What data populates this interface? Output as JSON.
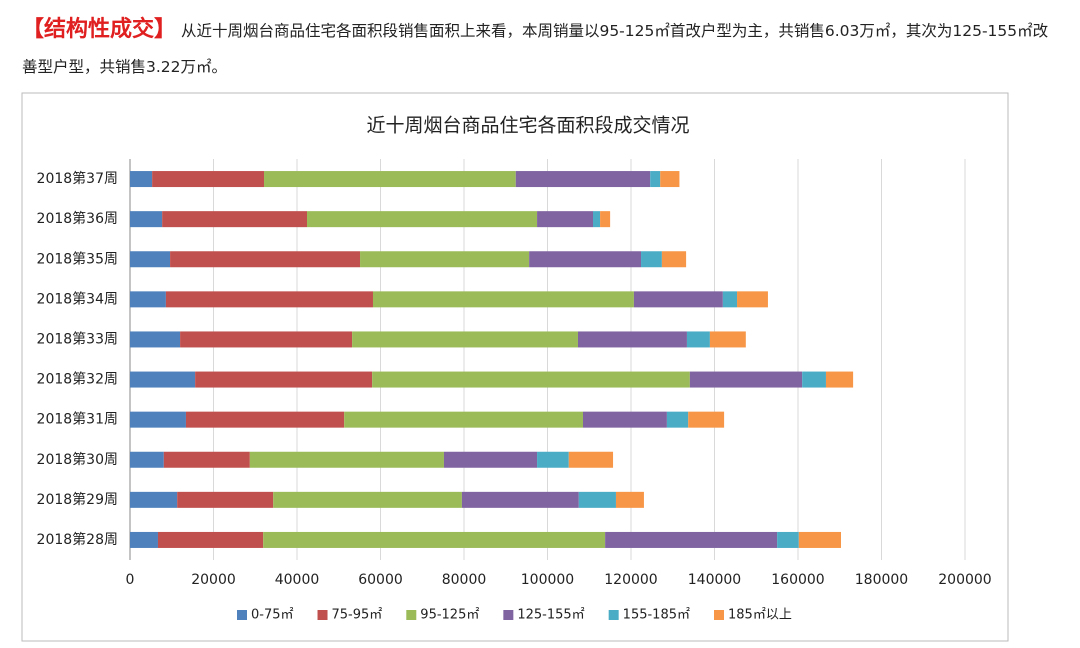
{
  "header": {
    "tag": "【结构性成交】",
    "text": "从近十周烟台商品住宅各面积段销售面积上来看，本周销量以95-125㎡首改户型为主，共销售6.03万㎡，其次为125-155㎡改善型户型，共销售3.22万㎡。"
  },
  "chart_data": {
    "type": "stacked-bar-horizontal",
    "title": "近十周烟台商品住宅各面积段成交情况",
    "categories": [
      "2018第37周",
      "2018第36周",
      "2018第35周",
      "2018第34周",
      "2018第33周",
      "2018第32周",
      "2018第31周",
      "2018第30周",
      "2018第29周",
      "2018第28周"
    ],
    "series": [
      {
        "name": "0-75㎡",
        "color": "#4f81bd",
        "values": [
          5300,
          7700,
          9600,
          8600,
          12000,
          15600,
          13400,
          8100,
          11300,
          6700
        ]
      },
      {
        "name": "75-95㎡",
        "color": "#c0504d",
        "values": [
          26800,
          34700,
          45500,
          49600,
          41200,
          42400,
          37900,
          20600,
          23000,
          25200
        ]
      },
      {
        "name": "95-125㎡",
        "color": "#9bbb59",
        "values": [
          60300,
          55100,
          40500,
          62500,
          54100,
          76100,
          57200,
          46500,
          45200,
          81900
        ]
      },
      {
        "name": "125-155㎡",
        "color": "#8064a2",
        "values": [
          32200,
          13400,
          26800,
          21300,
          26100,
          26900,
          20100,
          22300,
          28000,
          41200
        ]
      },
      {
        "name": "155-185㎡",
        "color": "#4bacc6",
        "values": [
          2400,
          1700,
          5000,
          3400,
          5500,
          5700,
          5100,
          7600,
          8900,
          5200
        ]
      },
      {
        "name": "185㎡以上",
        "color": "#f79646",
        "values": [
          4600,
          2400,
          5800,
          7400,
          8600,
          6500,
          8600,
          10600,
          6700,
          10100
        ]
      }
    ],
    "xlim": [
      0,
      200000
    ],
    "xticks": [
      0,
      20000,
      40000,
      60000,
      80000,
      100000,
      120000,
      140000,
      160000,
      180000,
      200000
    ],
    "grid": true,
    "legend": "bottom"
  }
}
